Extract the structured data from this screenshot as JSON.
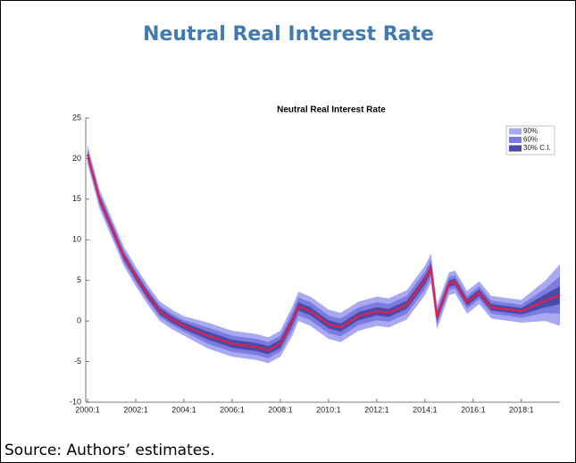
{
  "title": "Neutral Real Interest Rate",
  "source": "Source: Authors’ estimates.",
  "chart_data": {
    "type": "fan",
    "title": "Neutral Real Interest Rate",
    "x": [
      2000,
      2000.5,
      2001,
      2001.5,
      2002,
      2002.5,
      2003,
      2003.5,
      2004,
      2005,
      2006,
      2007,
      2007.5,
      2008,
      2008.5,
      2008.75,
      2009.25,
      2010,
      2010.5,
      2011.25,
      2012,
      2012.5,
      2013.25,
      2014,
      2014.25,
      2014.5,
      2015,
      2015.25,
      2015.75,
      2016.25,
      2016.75,
      2018,
      2019,
      2019.6
    ],
    "bands": [
      {
        "name": "90%",
        "color": "#a9a9f2",
        "lower": [
          19.3,
          13.8,
          10.3,
          6.8,
          4.3,
          2.0,
          0.0,
          -1.0,
          -1.8,
          -3.4,
          -4.4,
          -4.8,
          -5.2,
          -4.4,
          -1.8,
          0.0,
          -0.6,
          -2.2,
          -2.6,
          -1.2,
          -0.6,
          -0.8,
          0.2,
          3.2,
          4.7,
          -1.0,
          3.2,
          3.4,
          0.9,
          2.1,
          0.3,
          -0.2,
          0.0,
          -0.6
        ],
        "upper": [
          21.7,
          16.2,
          12.7,
          9.2,
          6.7,
          4.4,
          2.4,
          1.4,
          0.6,
          -0.2,
          -1.2,
          -1.6,
          -2.0,
          -1.2,
          1.8,
          3.6,
          3.0,
          1.4,
          1.0,
          2.4,
          3.0,
          2.8,
          3.8,
          6.8,
          8.3,
          2.0,
          6.0,
          6.2,
          3.7,
          4.9,
          3.1,
          2.6,
          5.0,
          7.0
        ]
      },
      {
        "name": "60%",
        "color": "#7b7be0",
        "lower": [
          19.8,
          14.3,
          10.8,
          7.3,
          4.8,
          2.5,
          0.5,
          -0.5,
          -1.3,
          -2.8,
          -3.8,
          -4.2,
          -4.6,
          -3.8,
          -1.1,
          0.7,
          0.1,
          -1.5,
          -1.9,
          -0.5,
          0.1,
          -0.1,
          0.9,
          3.9,
          5.4,
          -0.4,
          3.8,
          4.0,
          1.5,
          2.7,
          0.9,
          0.4,
          1.0,
          0.9
        ],
        "upper": [
          21.2,
          15.7,
          12.2,
          8.7,
          6.2,
          3.9,
          1.9,
          0.9,
          0.1,
          -0.8,
          -1.8,
          -2.2,
          -2.6,
          -1.8,
          1.1,
          2.9,
          2.3,
          0.7,
          0.3,
          1.7,
          2.3,
          2.1,
          3.1,
          6.1,
          7.6,
          1.4,
          5.4,
          5.6,
          3.1,
          4.3,
          2.5,
          2.0,
          4.0,
          5.5
        ]
      },
      {
        "name": "30% C.I.",
        "color": "#4a4aaa",
        "lower": [
          20.1,
          14.6,
          11.1,
          7.6,
          5.1,
          2.8,
          0.8,
          -0.2,
          -1.0,
          -2.3,
          -3.3,
          -3.7,
          -4.1,
          -3.3,
          -0.5,
          1.3,
          0.7,
          -0.9,
          -1.3,
          0.1,
          0.7,
          0.5,
          1.5,
          4.5,
          6.0,
          0.0,
          4.2,
          4.4,
          1.9,
          3.1,
          1.3,
          0.8,
          1.7,
          2.1
        ],
        "upper": [
          20.9,
          15.4,
          11.9,
          8.4,
          5.9,
          3.6,
          1.6,
          0.6,
          -0.2,
          -1.3,
          -2.3,
          -2.7,
          -3.1,
          -2.3,
          0.5,
          2.3,
          1.7,
          0.1,
          -0.3,
          1.1,
          1.7,
          1.5,
          2.5,
          5.5,
          7.0,
          1.0,
          5.0,
          5.2,
          2.7,
          3.9,
          2.1,
          1.6,
          3.3,
          4.3
        ]
      }
    ],
    "series": [
      {
        "color": "#e0204a",
        "values": [
          20.5,
          15,
          11.5,
          8,
          5.5,
          3.2,
          1.2,
          0.2,
          -0.6,
          -1.8,
          -2.8,
          -3.2,
          -3.6,
          -2.8,
          0,
          1.8,
          1.2,
          -0.4,
          -0.8,
          0.6,
          1.2,
          1.0,
          2.0,
          5,
          6.5,
          0.5,
          4.6,
          4.8,
          2.3,
          3.5,
          1.7,
          1.2,
          2.5,
          3.2
        ]
      }
    ],
    "xlim": [
      2000,
      2019.6
    ],
    "xticks": [
      {
        "value": 2000,
        "label": "2000:1"
      },
      {
        "value": 2002,
        "label": "2002:1"
      },
      {
        "value": 2004,
        "label": "2004:1"
      },
      {
        "value": 2006,
        "label": "2006:1"
      },
      {
        "value": 2008,
        "label": "2008:1"
      },
      {
        "value": 2010,
        "label": "2010:1"
      },
      {
        "value": 2012,
        "label": "2012:1"
      },
      {
        "value": 2014,
        "label": "2014:1"
      },
      {
        "value": 2016,
        "label": "2016:1"
      },
      {
        "value": 2018,
        "label": "2018:1"
      }
    ],
    "ylim": [
      -10,
      25
    ],
    "yticks": [
      -10,
      -5,
      0,
      5,
      10,
      15,
      20,
      25
    ],
    "legend": "top-right"
  }
}
